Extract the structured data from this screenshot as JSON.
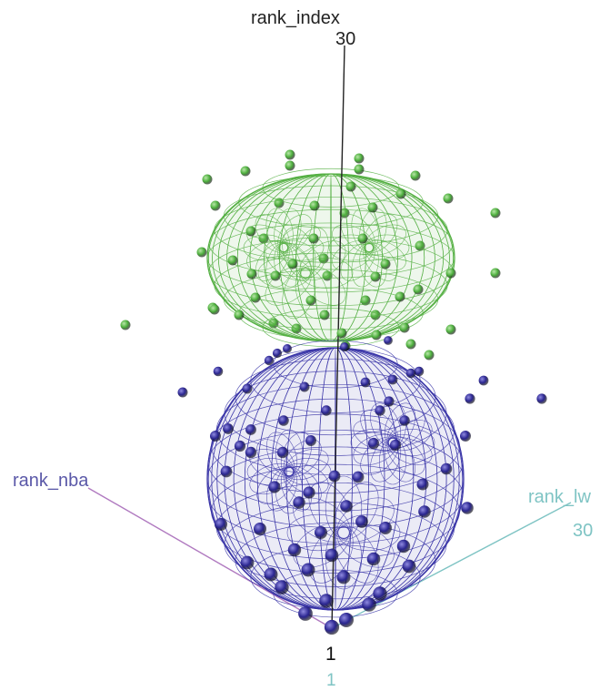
{
  "chart_data": {
    "type": "scatter",
    "subtype": "3d-scatter-with-wireframe-ellipsoids",
    "axes": {
      "vertical": {
        "label": "rank_index",
        "min_label": "1",
        "max_label": "30",
        "color": "#222222"
      },
      "left": {
        "label": "rank_nba",
        "color": "#5a58a8",
        "line_color": "#b07ac0"
      },
      "right": {
        "label": "rank_lw",
        "min_label": "1",
        "max_label": "30",
        "color": "#7fc4c4"
      }
    },
    "groups": [
      {
        "color": "#4caf3c",
        "mesh_color": "#56b044",
        "shape": "flattened-ellipsoid",
        "position": "upper"
      },
      {
        "color": "#2a2590",
        "mesh_color": "#3b36a8",
        "shape": "sphere",
        "position": "lower"
      }
    ],
    "grid": false,
    "legend": "none"
  }
}
